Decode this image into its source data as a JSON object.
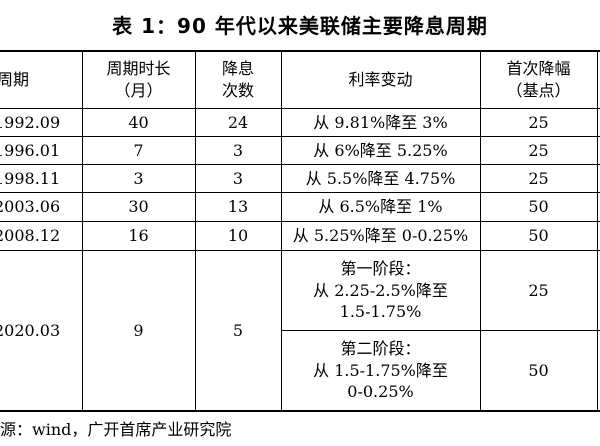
{
  "title": "表 1：90 年代以来美联储主要降息周期",
  "headers": {
    "period": "周期",
    "duration_l1": "周期时长",
    "duration_l2": "（月）",
    "cuts_l1": "降息",
    "cuts_l2": "次数",
    "rate_change": "利率变动",
    "first_cut_l1": "首次降幅",
    "first_cut_l2": "（基点）"
  },
  "rows": [
    {
      "period": "1992.09",
      "duration": "40",
      "cuts": "24",
      "rate_change": "从 9.81%降至 3%",
      "first_cut": "25"
    },
    {
      "period": "1996.01",
      "duration": "7",
      "cuts": "3",
      "rate_change": "从 6%降至 5.25%",
      "first_cut": "25"
    },
    {
      "period": "1998.11",
      "duration": "3",
      "cuts": "3",
      "rate_change": "从 5.5%降至 4.75%",
      "first_cut": "25"
    },
    {
      "period": "2003.06",
      "duration": "30",
      "cuts": "13",
      "rate_change": "从 6.5%降至 1%",
      "first_cut": "50"
    },
    {
      "period": "2008.12",
      "duration": "16",
      "cuts": "10",
      "rate_change": "从 5.25%降至 0-0.25%",
      "first_cut": "50"
    }
  ],
  "last_row": {
    "period": "2020.03",
    "duration": "9",
    "cuts": "5",
    "stage1": {
      "l1": "第一阶段：",
      "l2": "从 2.25-2.5%降至",
      "l3": "1.5-1.75%",
      "first_cut": "25"
    },
    "stage2": {
      "l1": "第二阶段：",
      "l2": "从 1.5-1.75%降至",
      "l3": "0-0.25%",
      "first_cut": "50"
    }
  },
  "source": "源：wind，广开首席产业研究院"
}
